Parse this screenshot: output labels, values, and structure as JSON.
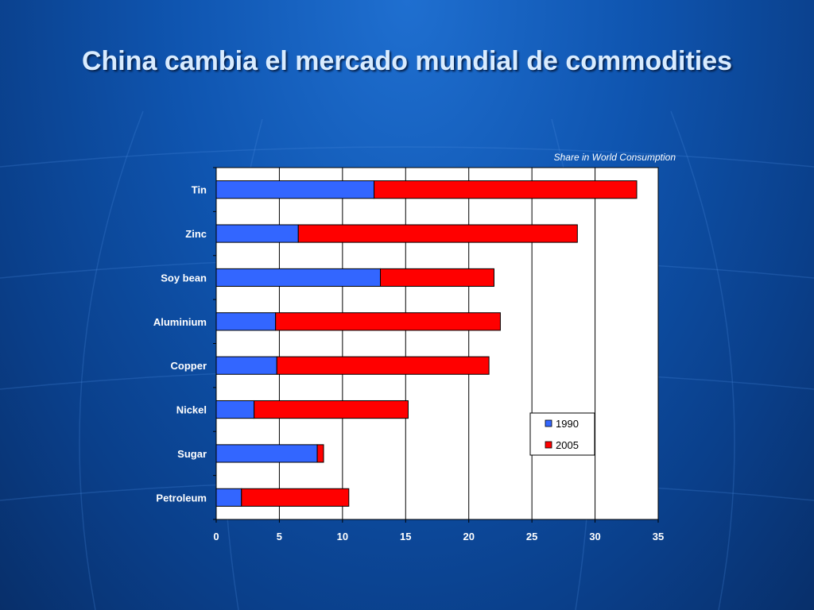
{
  "slide": {
    "title": "China cambia el mercado mundial de commodities"
  },
  "colors": {
    "series_1990": "#3366ff",
    "series_2005": "#ff0000",
    "plot_bg": "#ffffff",
    "text": "#ffffff"
  },
  "chart_data": {
    "type": "bar",
    "orientation": "horizontal",
    "stacked": true,
    "title": "",
    "subtitle": "Share in World Consumption",
    "xlabel": "",
    "ylabel": "",
    "xlim": [
      0,
      35
    ],
    "xticks": [
      0,
      5,
      10,
      15,
      20,
      25,
      30,
      35
    ],
    "grid": "vertical",
    "legend_position": "bottom-right",
    "categories": [
      "Tin",
      "Zinc",
      "Soy bean",
      "Aluminium",
      "Copper",
      "Nickel",
      "Sugar",
      "Petroleum"
    ],
    "series": [
      {
        "name": "1990",
        "values": [
          12.5,
          6.5,
          13.0,
          4.7,
          4.8,
          3.0,
          8.0,
          2.0
        ]
      },
      {
        "name": "2005",
        "values": [
          20.8,
          22.1,
          9.0,
          17.8,
          16.8,
          12.2,
          0.5,
          8.5
        ]
      }
    ]
  }
}
